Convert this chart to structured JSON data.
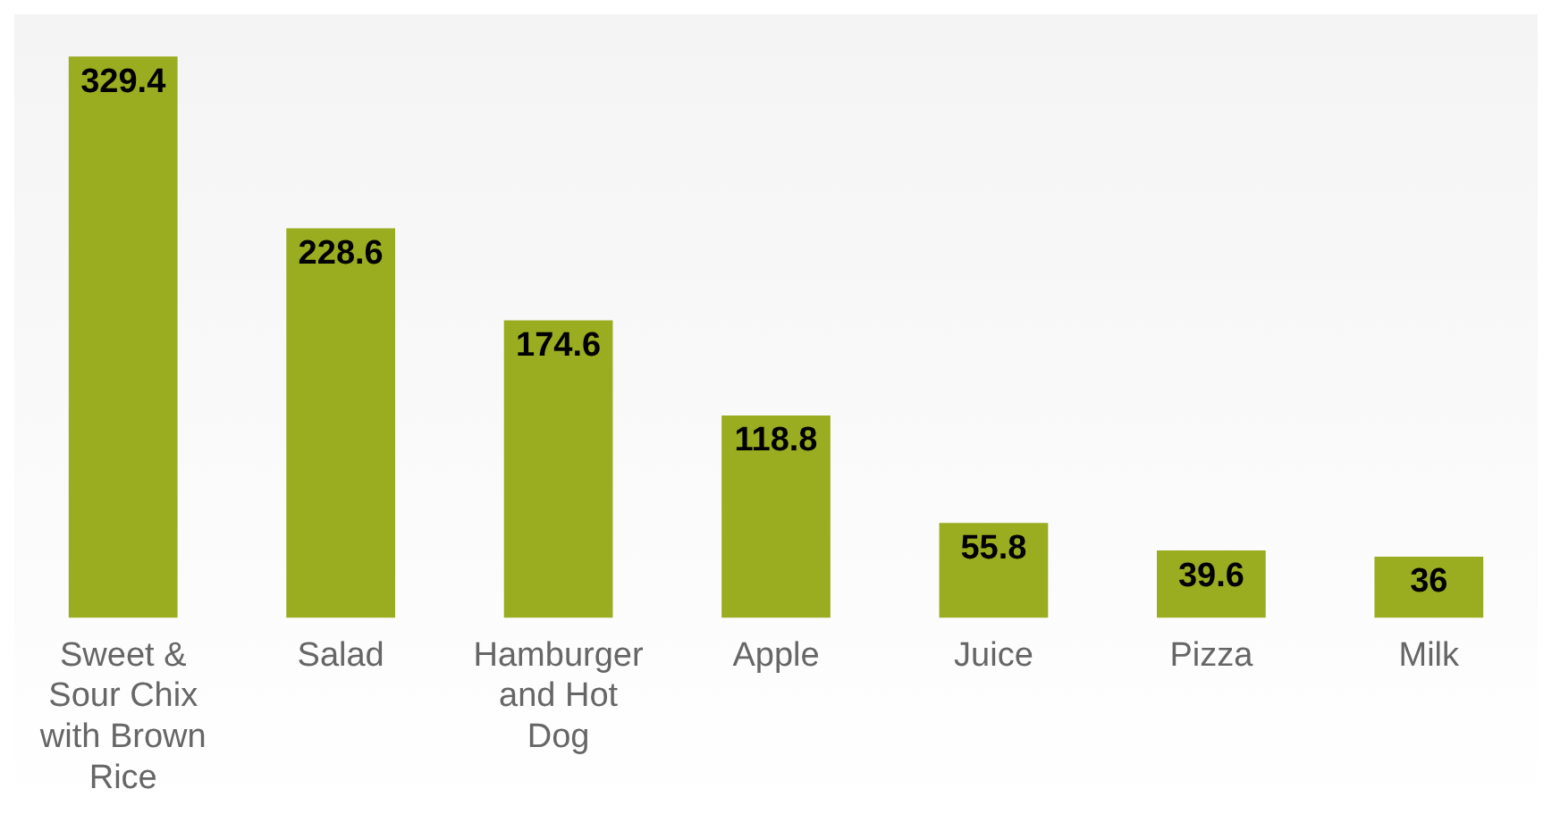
{
  "chart_data": {
    "type": "bar",
    "categories": [
      "Sweet & Sour Chix with Brown Rice",
      "Salad",
      "Hamburger and Hot Dog",
      "Apple",
      "Juice",
      "Pizza",
      "Milk"
    ],
    "values": [
      329.4,
      228.6,
      174.6,
      118.8,
      55.8,
      39.6,
      36
    ],
    "color": "#9aac1f",
    "data_labels": true,
    "grid": false,
    "legend": false
  }
}
